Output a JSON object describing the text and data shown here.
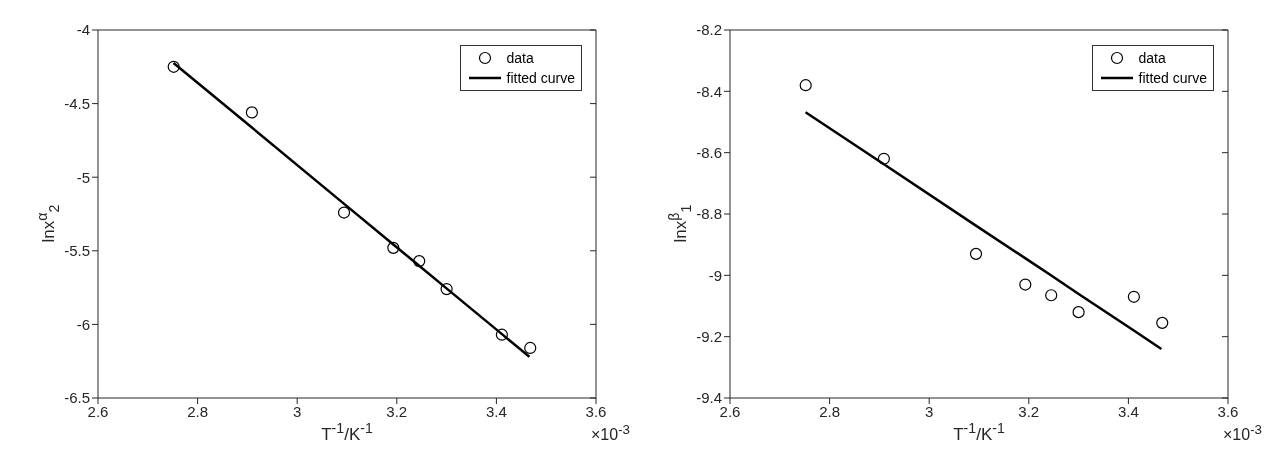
{
  "chart_data": [
    {
      "type": "scatter",
      "xlabel": "T$^{-1}$/K$^{-1}$",
      "ylabel": "lnx$^{α}$$_{2}$",
      "annotations": [
        "×10$^{-3}$"
      ],
      "xlim": [
        2.6,
        3.6
      ],
      "xticks": [
        2.6,
        2.8,
        3,
        3.2,
        3.4,
        3.6
      ],
      "ylim": [
        -6.5,
        -4
      ],
      "yticks": [
        -6.5,
        -6,
        -5.5,
        -5,
        -4.5,
        -4
      ],
      "grid": false,
      "legend": "top right",
      "marker": "circle",
      "x": [
        2.752,
        2.909,
        3.094,
        3.193,
        3.245,
        3.3,
        3.411,
        3.468
      ],
      "series": [
        {
          "name": "data",
          "type": "scatter",
          "color": "#000000",
          "values": [
            -4.25,
            -4.56,
            -5.24,
            -5.48,
            -5.57,
            -5.76,
            -6.07,
            -6.16
          ]
        },
        {
          "name": "fitted curve",
          "type": "line",
          "marker": "none",
          "line_style": "solid",
          "color": "#000000",
          "values": [
            -4.224,
            -4.661,
            -5.178,
            -5.454,
            -5.598,
            -5.752,
            -6.061,
            -6.22
          ]
        }
      ]
    },
    {
      "type": "scatter",
      "xlabel": "T$^{-1}$/K$^{-1}$",
      "ylabel": "lnx$^{β}$$_{1}$",
      "annotations": [
        "×10$^{-3}$"
      ],
      "xlim": [
        2.6,
        3.6
      ],
      "xticks": [
        2.6,
        2.8,
        3,
        3.2,
        3.4,
        3.6
      ],
      "ylim": [
        -9.4,
        -8.2
      ],
      "yticks": [
        -9.4,
        -9.2,
        -9,
        -8.8,
        -8.6,
        -8.4,
        -8.2
      ],
      "grid": false,
      "legend": "top right",
      "marker": "circle",
      "x": [
        2.752,
        2.909,
        3.094,
        3.193,
        3.245,
        3.3,
        3.411,
        3.468
      ],
      "series": [
        {
          "name": "data",
          "type": "scatter",
          "color": "#000000",
          "values": [
            -8.38,
            -8.62,
            -8.93,
            -9.03,
            -9.065,
            -9.12,
            -9.07,
            -9.155
          ]
        },
        {
          "name": "fitted curve",
          "type": "line",
          "marker": "none",
          "line_style": "solid",
          "color": "#000000",
          "values": [
            -8.468,
            -8.637,
            -8.837,
            -8.943,
            -8.999,
            -9.059,
            -9.178,
            -9.24
          ]
        }
      ]
    }
  ]
}
